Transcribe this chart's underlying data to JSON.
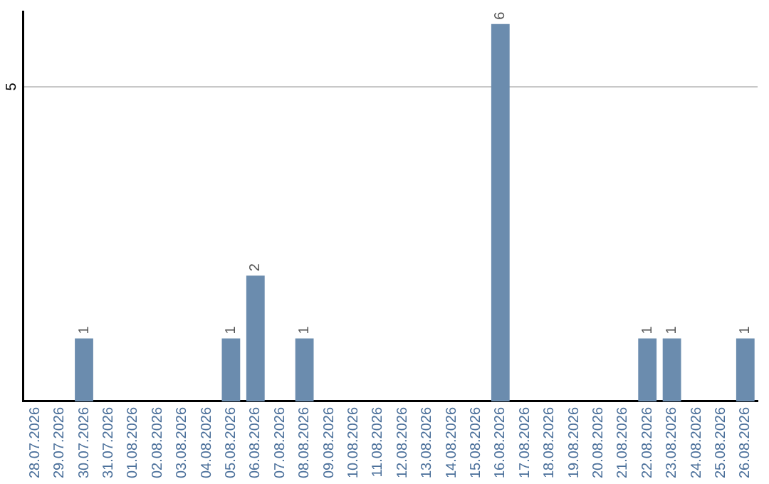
{
  "chart_data": {
    "type": "bar",
    "categories": [
      "28.07.2026",
      "29.07.2026",
      "30.07.2026",
      "31.07.2026",
      "01.08.2026",
      "02.08.2026",
      "03.08.2026",
      "04.08.2026",
      "05.08.2026",
      "06.08.2026",
      "07.08.2026",
      "08.08.2026",
      "09.08.2026",
      "10.08.2026",
      "11.08.2026",
      "12.08.2026",
      "13.08.2026",
      "14.08.2026",
      "15.08.2026",
      "16.08.2026",
      "17.08.2026",
      "18.08.2026",
      "19.08.2026",
      "20.08.2026",
      "21.08.2026",
      "22.08.2026",
      "23.08.2026",
      "24.08.2026",
      "25.08.2026",
      "26.08.2026"
    ],
    "values": [
      0,
      0,
      1,
      0,
      0,
      0,
      0,
      0,
      1,
      2,
      0,
      1,
      0,
      0,
      0,
      0,
      0,
      0,
      0,
      6,
      0,
      0,
      0,
      0,
      0,
      1,
      1,
      0,
      0,
      1
    ],
    "value_labels": [
      null,
      null,
      "1",
      null,
      null,
      null,
      null,
      null,
      "1",
      "2",
      null,
      "1",
      null,
      null,
      null,
      null,
      null,
      null,
      null,
      "6",
      null,
      null,
      null,
      null,
      null,
      "1",
      "1",
      null,
      null,
      "1"
    ],
    "color": "#6b8cae",
    "ylim": [
      0,
      6.2
    ],
    "yticks": [
      5
    ],
    "grid": "y",
    "legend": false
  }
}
